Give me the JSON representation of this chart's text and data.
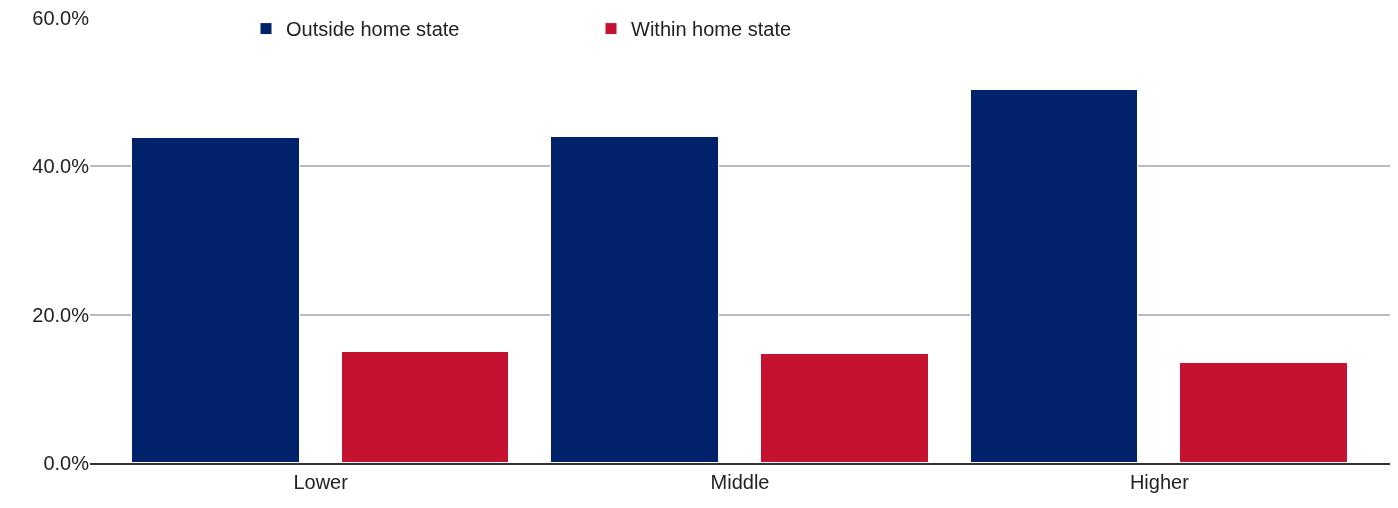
{
  "chart_data": {
    "type": "bar",
    "categories": [
      "Lower",
      "Middle",
      "Higher"
    ],
    "series": [
      {
        "name": "Outside home state",
        "color": "#00226a",
        "values": [
          43.8,
          43.9,
          50.3
        ]
      },
      {
        "name": "Within home state",
        "color": "#c41230",
        "values": [
          14.9,
          14.7,
          13.5
        ]
      }
    ],
    "ylim": [
      0,
      60
    ],
    "yticks": [
      {
        "value": 0,
        "label": "0.0%"
      },
      {
        "value": 20,
        "label": "20.0%"
      },
      {
        "value": 40,
        "label": "40.0%"
      },
      {
        "value": 60,
        "label": "60.0%"
      }
    ],
    "grid": "y",
    "legend": "top left"
  }
}
